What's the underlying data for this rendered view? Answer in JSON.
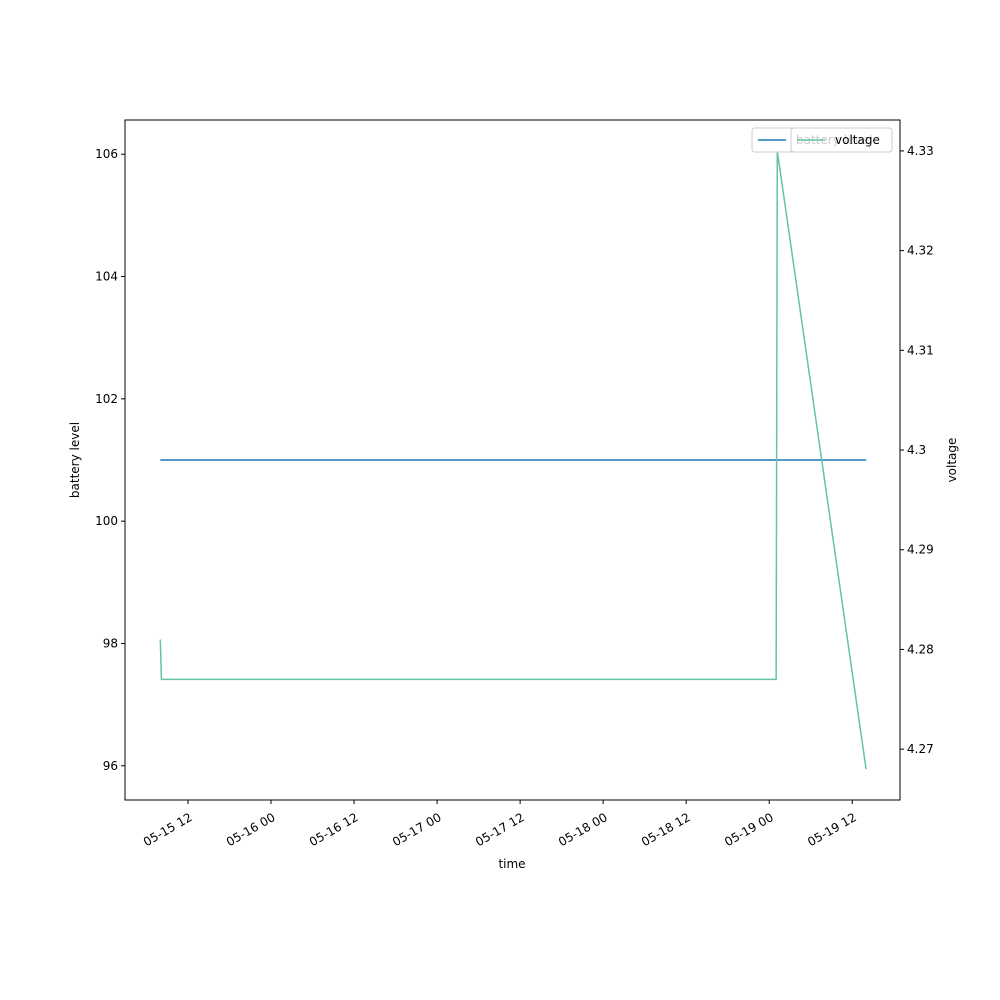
{
  "chart_data": {
    "type": "line",
    "xlabel": "time",
    "ylabel": "battery level",
    "y2label": "voltage",
    "x": [
      "05-15 08:00",
      "05-15 08:10",
      "05-19 01:00",
      "05-19 01:10",
      "05-19 14:00"
    ],
    "series": [
      {
        "name": "battery level",
        "color": "#1f77b4",
        "values": [
          101,
          101,
          101,
          101,
          101
        ]
      },
      {
        "name": "voltage",
        "color": "#66c2a5",
        "axis": "y2",
        "values": [
          4.281,
          4.277,
          4.277,
          4.33,
          4.268
        ]
      }
    ],
    "xlim": [
      "05-15 02:54",
      "05-19 18:54"
    ],
    "xticks": [
      "05-15 12",
      "05-16 00",
      "05-16 12",
      "05-17 00",
      "05-17 12",
      "05-18 00",
      "05-18 12",
      "05-19 00",
      "05-19 12"
    ],
    "ylim": [
      95.44,
      106.56
    ],
    "yticks": [
      96,
      98,
      100,
      102,
      104,
      106
    ],
    "y2lim": [
      4.2649,
      4.3331
    ],
    "y2ticks": [
      4.27,
      4.28,
      4.29,
      4.3,
      4.31,
      4.32,
      4.33
    ],
    "grid": false,
    "legend": "upper right"
  }
}
